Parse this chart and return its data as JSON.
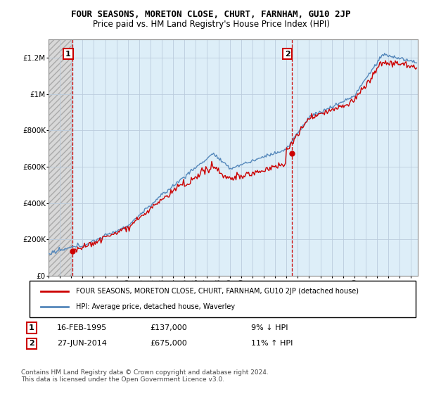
{
  "title": "FOUR SEASONS, MORETON CLOSE, CHURT, FARNHAM, GU10 2JP",
  "subtitle": "Price paid vs. HM Land Registry's House Price Index (HPI)",
  "ylim": [
    0,
    1300000
  ],
  "yticks": [
    0,
    200000,
    400000,
    600000,
    800000,
    1000000,
    1200000
  ],
  "ytick_labels": [
    "£0",
    "£200K",
    "£400K",
    "£600K",
    "£800K",
    "£1M",
    "£1.2M"
  ],
  "sale1_date": 1995.12,
  "sale1_price": 137000,
  "sale2_date": 2014.49,
  "sale2_price": 675000,
  "hpi_color": "#5588bb",
  "price_color": "#cc0000",
  "dashed_line_color": "#cc0000",
  "hatch_bg_color": "#d0d0d0",
  "blue_bg_color": "#ddeef8",
  "legend_label1": "FOUR SEASONS, MORETON CLOSE, CHURT, FARNHAM, GU10 2JP (detached house)",
  "legend_label2": "HPI: Average price, detached house, Waverley",
  "note1_date": "16-FEB-1995",
  "note1_price": "£137,000",
  "note1_hpi": "9% ↓ HPI",
  "note2_date": "27-JUN-2014",
  "note2_price": "£675,000",
  "note2_hpi": "11% ↑ HPI",
  "footer": "Contains HM Land Registry data © Crown copyright and database right 2024.\nThis data is licensed under the Open Government Licence v3.0.",
  "title_fontsize": 9,
  "subtitle_fontsize": 8.5,
  "axis_fontsize": 7.5,
  "legend_fontsize": 7,
  "note_fontsize": 8,
  "footer_fontsize": 6.5
}
